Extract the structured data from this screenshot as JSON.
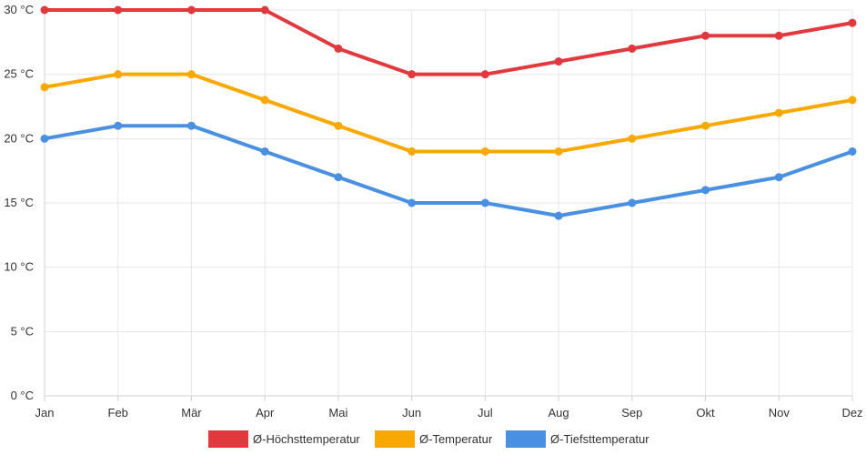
{
  "chart_data": {
    "type": "line",
    "title": "",
    "xlabel": "",
    "ylabel": "",
    "categories": [
      "Jan",
      "Feb",
      "Mär",
      "Apr",
      "Mai",
      "Jun",
      "Jul",
      "Aug",
      "Sep",
      "Okt",
      "Nov",
      "Dez"
    ],
    "ylim": [
      0,
      30
    ],
    "yticks": [
      0,
      5,
      10,
      15,
      20,
      25,
      30
    ],
    "ytick_labels": [
      "0 °C",
      "5 °C",
      "10 °C",
      "15 °C",
      "20 °C",
      "25 °C",
      "30 °C"
    ],
    "grid": true,
    "legend_position": "bottom-center",
    "series": [
      {
        "name": "Ø-Höchsttemperatur",
        "color": "#e0393e",
        "values": [
          30,
          30,
          30,
          30,
          27,
          25,
          25,
          26,
          27,
          28,
          28,
          29
        ]
      },
      {
        "name": "Ø-Temperatur",
        "color": "#f9a800",
        "values": [
          24,
          25,
          25,
          23,
          21,
          19,
          19,
          19,
          20,
          21,
          22,
          23
        ]
      },
      {
        "name": "Ø-Tiefsttemperatur",
        "color": "#4a90e2",
        "values": [
          20,
          21,
          21,
          19,
          17,
          15,
          15,
          14,
          15,
          16,
          17,
          19
        ]
      }
    ]
  }
}
